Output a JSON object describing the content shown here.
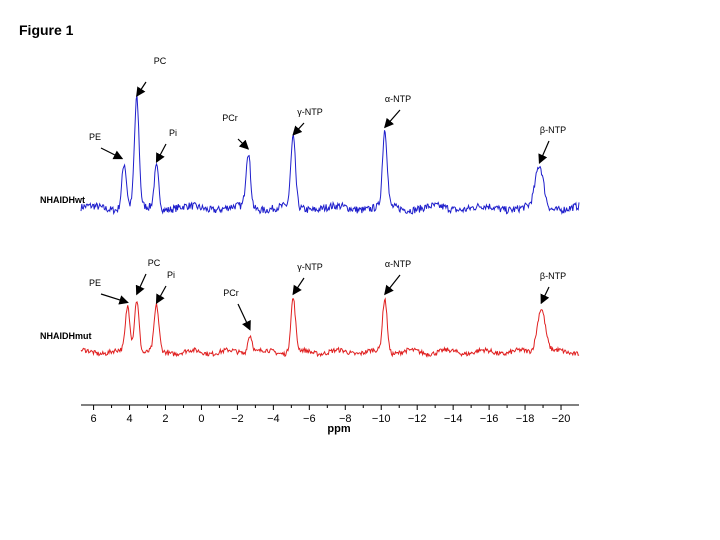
{
  "figure": {
    "title": "Figure 1"
  },
  "chart_data": {
    "type": "line",
    "title": "",
    "xlabel": "ppm",
    "ylabel": "",
    "xlim": [
      6.7,
      -21
    ],
    "x_reversed": true,
    "x_ticks": [
      6,
      4,
      2,
      0,
      -2,
      -4,
      -6,
      -8,
      -10,
      -12,
      -14,
      -16,
      -18,
      -20
    ],
    "x_tick_labels": [
      "6",
      "4",
      "2",
      "0",
      "−2",
      "−4",
      "−6",
      "−8",
      "−10",
      "−12",
      "−14",
      "−16",
      "−18",
      "−20"
    ],
    "grid": false,
    "legend": "none",
    "series": [
      {
        "name": "NHAIDHwt",
        "color": "#1f1fcc",
        "peaks": [
          {
            "label": "PE",
            "ppm": 4.3,
            "height": 0.42
          },
          {
            "label": "PC",
            "ppm": 3.6,
            "height": 1.0
          },
          {
            "label": "Pi",
            "ppm": 2.5,
            "height": 0.39
          },
          {
            "label": "PCr",
            "ppm": -2.6,
            "height": 0.51
          },
          {
            "label": "γ-NTP",
            "ppm": -5.1,
            "height": 0.64
          },
          {
            "label": "α-NTP",
            "ppm": -10.2,
            "height": 0.71
          },
          {
            "label": "β-NTP",
            "ppm": -18.8,
            "height": 0.38
          }
        ]
      },
      {
        "name": "NHAIDHmut",
        "color": "#e02020",
        "peaks": [
          {
            "label": "PE",
            "ppm": 4.1,
            "height": 0.67
          },
          {
            "label": "PC",
            "ppm": 3.6,
            "height": 0.79
          },
          {
            "label": "Pi",
            "ppm": 2.5,
            "height": 0.66
          },
          {
            "label": "PCr",
            "ppm": -2.7,
            "height": 0.27
          },
          {
            "label": "γ-NTP",
            "ppm": -5.1,
            "height": 0.79
          },
          {
            "label": "α-NTP",
            "ppm": -10.2,
            "height": 0.79
          },
          {
            "label": "β-NTP",
            "ppm": -18.9,
            "height": 0.66
          }
        ]
      }
    ]
  }
}
